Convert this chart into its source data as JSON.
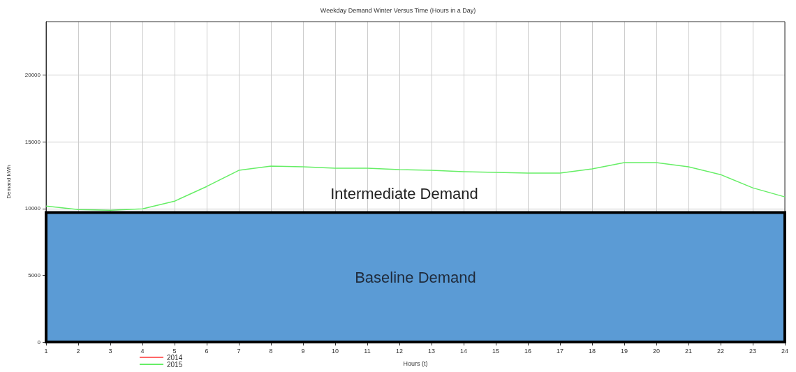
{
  "chart_data": {
    "type": "line",
    "title": "Weekday Demand Winter Versus Time (Hours in a Day)",
    "xlabel": "Hours (t)",
    "ylabel": "Demand kWh",
    "x": [
      1,
      2,
      3,
      4,
      5,
      6,
      7,
      8,
      9,
      10,
      11,
      12,
      13,
      14,
      15,
      16,
      17,
      18,
      19,
      20,
      21,
      22,
      23,
      24
    ],
    "series": [
      {
        "name": "2014",
        "color": "#ff6666",
        "values": [
          null,
          null,
          null,
          null,
          null,
          null,
          null,
          null,
          null,
          null,
          null,
          null,
          null,
          null,
          null,
          null,
          null,
          null,
          null,
          null,
          null,
          null,
          null,
          null
        ]
      },
      {
        "name": "2015",
        "color": "#66ee66",
        "values": [
          10180,
          9920,
          9870,
          9970,
          10550,
          11650,
          12860,
          13180,
          13120,
          13020,
          13020,
          12910,
          12860,
          12760,
          12700,
          12650,
          12650,
          12970,
          13440,
          13440,
          13120,
          12540,
          11550,
          10870
        ]
      }
    ],
    "xlim": [
      1,
      24
    ],
    "xticks": [
      1,
      2,
      3,
      4,
      5,
      6,
      7,
      8,
      9,
      10,
      11,
      12,
      13,
      14,
      15,
      16,
      17,
      18,
      19,
      20,
      21,
      22,
      23,
      24
    ],
    "ylim": [
      0,
      24000
    ],
    "yticks": [
      0,
      5000,
      10000,
      15000,
      20000
    ],
    "bands": [
      {
        "axis": "y",
        "from": 0,
        "to": 9700,
        "label": "Baseline Demand",
        "color": "#5b9bd5"
      }
    ],
    "annotations": [
      "Intermediate Demand"
    ],
    "grid": true,
    "legend": "bottom left",
    "marker": "none",
    "line_style": "solid"
  }
}
